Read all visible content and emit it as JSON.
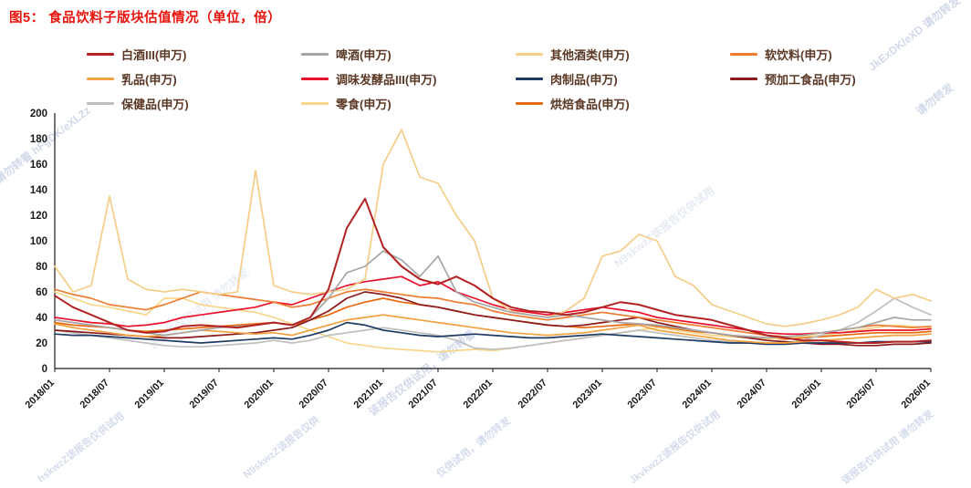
{
  "title": "图5：  食品饮料子版块估值情况（单位，倍）",
  "colors": {
    "title": "#e8120c",
    "legend_text": "#5a3825",
    "axis_text": "#1a1a1a",
    "watermark": "#b9c6e0"
  },
  "watermarks": {
    "w1": "JkExDK/eXD 请勿转发",
    "w2": "请勿转看 hFgDK/eXL2z",
    "w3": "该报告仅供试用，请勿转看",
    "w4": "N9skwzZ该报告仅供试用",
    "w5": "请勿转发",
    "b1": "hskwzZ该报告仅供试用",
    "b2": "N9skwzZ该报告仅供",
    "b3": "仅供试用，请勿转发",
    "b4": "JkvkwzZ该报告仅供试用",
    "b5": "该报告仅供试用 请勿转发"
  },
  "chart_data": {
    "type": "line",
    "title": "食品饮料子版块估值情况（单位，倍）",
    "xlabel": "",
    "ylabel": "",
    "ylim": [
      0,
      200
    ],
    "y_ticks": [
      0,
      20,
      40,
      60,
      80,
      100,
      120,
      140,
      160,
      180,
      200
    ],
    "grid": false,
    "legend_position": "top",
    "x": [
      "2018/01",
      "2018/03",
      "2018/05",
      "2018/07",
      "2018/09",
      "2018/11",
      "2019/01",
      "2019/03",
      "2019/05",
      "2019/07",
      "2019/09",
      "2019/11",
      "2020/01",
      "2020/03",
      "2020/05",
      "2020/07",
      "2020/09",
      "2020/11",
      "2021/01",
      "2021/03",
      "2021/05",
      "2021/07",
      "2021/09",
      "2021/11",
      "2022/01",
      "2022/03",
      "2022/05",
      "2022/07",
      "2022/09",
      "2022/11",
      "2023/01",
      "2023/03",
      "2023/05",
      "2023/07",
      "2023/09",
      "2023/11",
      "2024/01",
      "2024/03",
      "2024/05",
      "2024/07",
      "2024/09",
      "2024/11",
      "2025/01",
      "2025/03",
      "2025/05",
      "2025/07",
      "2025/09",
      "2025/11",
      "2026/01"
    ],
    "x_tick_labels": [
      "2018/01",
      "2018/07",
      "2019/01",
      "2019/07",
      "2020/01",
      "2020/07",
      "2021/01",
      "2021/07",
      "2022/01",
      "2022/07",
      "2023/01",
      "2023/07",
      "2024/01",
      "2024/07",
      "2025/01",
      "2025/07",
      "2026/01"
    ],
    "x_tick_every": 3,
    "series": [
      {
        "name": "白酒III(申万)",
        "color": "#b22222",
        "values": [
          57,
          48,
          42,
          36,
          30,
          28,
          29,
          33,
          34,
          33,
          32,
          34,
          36,
          34,
          40,
          62,
          110,
          133,
          95,
          80,
          70,
          66,
          72,
          65,
          55,
          48,
          45,
          44,
          42,
          44,
          48,
          52,
          50,
          46,
          42,
          40,
          38,
          34,
          30,
          26,
          24,
          22,
          22,
          21,
          20,
          20,
          21,
          21,
          22
        ]
      },
      {
        "name": "啤酒(申万)",
        "color": "#a6a6a6",
        "values": [
          38,
          36,
          34,
          32,
          30,
          28,
          26,
          28,
          30,
          32,
          33,
          34,
          36,
          34,
          40,
          55,
          75,
          80,
          92,
          85,
          72,
          88,
          60,
          52,
          48,
          44,
          42,
          40,
          42,
          40,
          38,
          36,
          35,
          34,
          32,
          30,
          28,
          26,
          25,
          24,
          25,
          26,
          28,
          30,
          32,
          36,
          40,
          38,
          38
        ]
      },
      {
        "name": "其他酒类(申万)",
        "color": "#f6cd87",
        "values": [
          80,
          60,
          65,
          135,
          70,
          62,
          60,
          62,
          60,
          58,
          60,
          155,
          65,
          60,
          58,
          60,
          62,
          70,
          160,
          187,
          150,
          145,
          120,
          100,
          55,
          45,
          42,
          40,
          45,
          55,
          88,
          92,
          105,
          100,
          72,
          65,
          50,
          45,
          40,
          35,
          33,
          35,
          38,
          42,
          48,
          62,
          55,
          58,
          53
        ]
      },
      {
        "name": "软饮料(申万)",
        "color": "#ed7d31",
        "values": [
          62,
          58,
          55,
          50,
          48,
          46,
          50,
          55,
          60,
          58,
          56,
          54,
          52,
          48,
          50,
          55,
          60,
          62,
          60,
          58,
          56,
          55,
          52,
          50,
          45,
          42,
          40,
          38,
          40,
          42,
          44,
          42,
          40,
          38,
          36,
          34,
          32,
          30,
          28,
          26,
          25,
          26,
          28,
          30,
          32,
          34,
          33,
          32,
          33
        ]
      },
      {
        "name": "乳品(申万)",
        "color": "#f2a241",
        "values": [
          35,
          32,
          30,
          28,
          26,
          25,
          26,
          28,
          30,
          29,
          28,
          27,
          28,
          26,
          30,
          34,
          38,
          40,
          42,
          40,
          38,
          36,
          34,
          32,
          30,
          28,
          27,
          26,
          27,
          28,
          30,
          32,
          34,
          30,
          28,
          26,
          24,
          22,
          21,
          20,
          20,
          21,
          22,
          23,
          24,
          25,
          26,
          26,
          27
        ]
      },
      {
        "name": "调味发酵品III(申万)",
        "color": "#e8112d",
        "values": [
          40,
          38,
          36,
          35,
          33,
          34,
          36,
          40,
          42,
          44,
          46,
          48,
          52,
          50,
          55,
          60,
          65,
          68,
          70,
          72,
          65,
          68,
          60,
          55,
          50,
          46,
          44,
          42,
          44,
          46,
          48,
          46,
          44,
          40,
          38,
          36,
          34,
          32,
          30,
          28,
          27,
          27,
          28,
          28,
          29,
          30,
          30,
          30,
          31
        ]
      },
      {
        "name": "肉制品(申万)",
        "color": "#1f3a63",
        "values": [
          27,
          26,
          26,
          25,
          24,
          23,
          22,
          21,
          20,
          21,
          22,
          23,
          24,
          23,
          26,
          30,
          36,
          34,
          30,
          28,
          26,
          25,
          26,
          27,
          26,
          25,
          24,
          24,
          25,
          26,
          27,
          26,
          25,
          24,
          23,
          22,
          21,
          20,
          20,
          19,
          19,
          20,
          20,
          20,
          20,
          21,
          21,
          21,
          21
        ]
      },
      {
        "name": "预加工食品(申万)",
        "color": "#8b1a1a",
        "values": [
          30,
          29,
          28,
          27,
          26,
          25,
          24,
          24,
          25,
          26,
          27,
          28,
          30,
          32,
          38,
          45,
          55,
          60,
          58,
          55,
          50,
          48,
          45,
          42,
          40,
          38,
          36,
          34,
          33,
          34,
          36,
          38,
          40,
          36,
          33,
          30,
          28,
          26,
          24,
          22,
          21,
          20,
          19,
          19,
          18,
          18,
          19,
          19,
          20
        ]
      },
      {
        "name": "保健品(申万)",
        "color": "#bfbfbf",
        "values": [
          30,
          28,
          26,
          24,
          22,
          20,
          18,
          17,
          17,
          18,
          19,
          20,
          22,
          20,
          22,
          26,
          28,
          30,
          32,
          30,
          28,
          26,
          22,
          16,
          15,
          16,
          18,
          20,
          22,
          24,
          26,
          28,
          30,
          28,
          26,
          24,
          22,
          21,
          20,
          19,
          20,
          22,
          26,
          30,
          36,
          45,
          55,
          48,
          42
        ]
      },
      {
        "name": "零食(申万)",
        "color": "#f9d689",
        "values": [
          60,
          55,
          50,
          48,
          45,
          42,
          55,
          55,
          50,
          48,
          46,
          44,
          40,
          35,
          30,
          25,
          20,
          18,
          16,
          15,
          14,
          13,
          14,
          15,
          14,
          16,
          18,
          20,
          22,
          24,
          26,
          28,
          30,
          32,
          30,
          28,
          26,
          25,
          24,
          23,
          24,
          25,
          26,
          28,
          30,
          32,
          34,
          33,
          32
        ]
      },
      {
        "name": "烘焙食品(申万)",
        "color": "#e86a10",
        "values": [
          36,
          34,
          33,
          32,
          30,
          29,
          30,
          31,
          32,
          33,
          34,
          35,
          36,
          34,
          38,
          42,
          48,
          52,
          55,
          52,
          50,
          48,
          45,
          42,
          40,
          38,
          36,
          34,
          33,
          32,
          33,
          34,
          35,
          33,
          31,
          29,
          28,
          26,
          25,
          24,
          23,
          24,
          25,
          26,
          27,
          28,
          28,
          28,
          29
        ]
      }
    ]
  }
}
